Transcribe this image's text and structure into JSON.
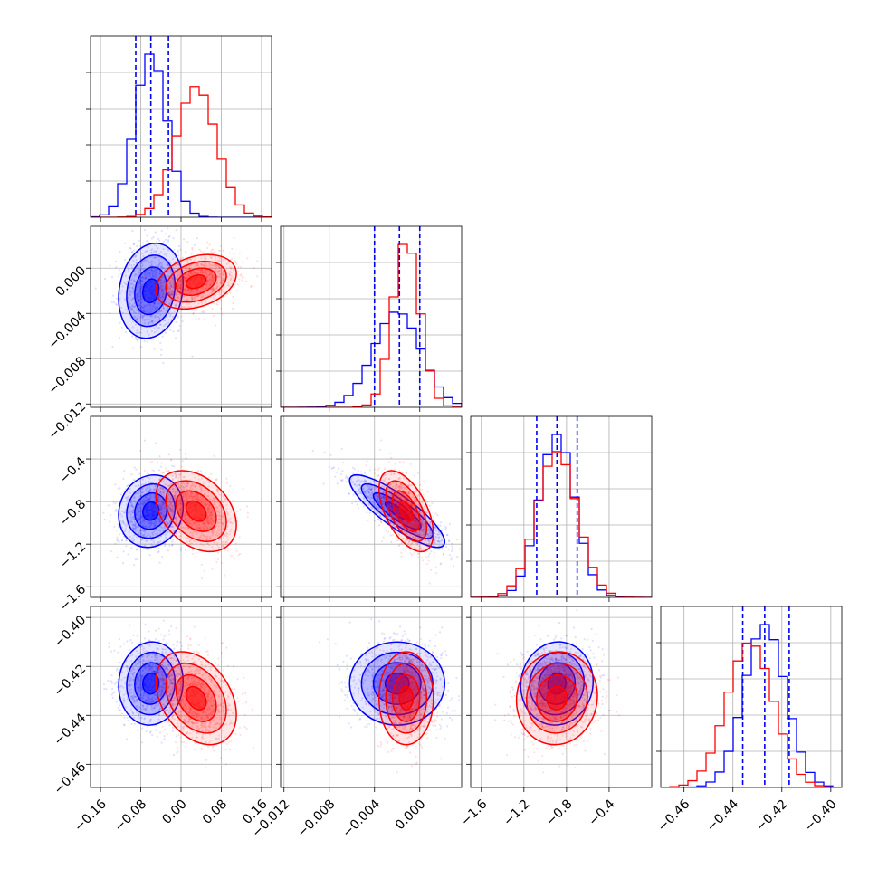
{
  "chart_data": {
    "type": "corner",
    "grid": true,
    "parameters": [
      {
        "range": [
          -0.18,
          0.18
        ],
        "ticks": [
          -0.16,
          -0.08,
          0.0,
          0.08,
          0.16
        ],
        "tick_labels": [
          "−0.16",
          "−0.08",
          "0.00",
          "0.08",
          "0.16"
        ]
      },
      {
        "range": [
          -0.0123,
          0.0037
        ],
        "ticks": [
          -0.012,
          -0.008,
          -0.004,
          0.0
        ],
        "tick_labels": [
          "−0.012",
          "−0.008",
          "−0.004",
          "0.000"
        ]
      },
      {
        "range": [
          -1.7,
          0.0
        ],
        "ticks": [
          -1.6,
          -1.2,
          -0.8,
          -0.4
        ],
        "tick_labels": [
          "−1.6",
          "−1.2",
          "−0.8",
          "−0.4"
        ]
      },
      {
        "range": [
          -0.4695,
          -0.3955
        ],
        "ticks": [
          -0.46,
          -0.44,
          -0.42,
          -0.4
        ],
        "tick_labels": [
          "−0.46",
          "−0.44",
          "−0.42",
          "−0.40"
        ]
      }
    ],
    "diag_y_ticks": [
      0.25,
      0.5,
      0.75,
      1.0
    ],
    "series": [
      {
        "color": "#0000ff",
        "means": [
          -0.06,
          -0.002,
          -0.89,
          -0.427
        ],
        "sds": [
          0.032,
          0.0021,
          0.17,
          0.0085
        ],
        "correlations": {
          "1-0": 0.15,
          "2-0": 0.1,
          "2-1": -0.85,
          "3-0": 0.05,
          "3-1": 0.0,
          "3-2": 0.05
        },
        "quantile_lines": [
          [
            -0.09,
            -0.06,
            -0.025
          ],
          [
            -0.004,
            -0.0018,
            0.0
          ],
          [
            -1.08,
            -0.89,
            -0.7
          ],
          [
            -0.436,
            -0.427,
            -0.417
          ]
        ]
      },
      {
        "color": "#ff0000",
        "means": [
          0.03,
          -0.0012,
          -0.89,
          -0.433
        ],
        "sds": [
          0.04,
          0.0012,
          0.19,
          0.0095
        ],
        "correlations": {
          "1-0": 0.3,
          "2-0": -0.35,
          "2-1": -0.55,
          "3-0": -0.35,
          "3-1": 0.0,
          "3-2": 0.05
        },
        "quantile_lines": []
      }
    ]
  }
}
